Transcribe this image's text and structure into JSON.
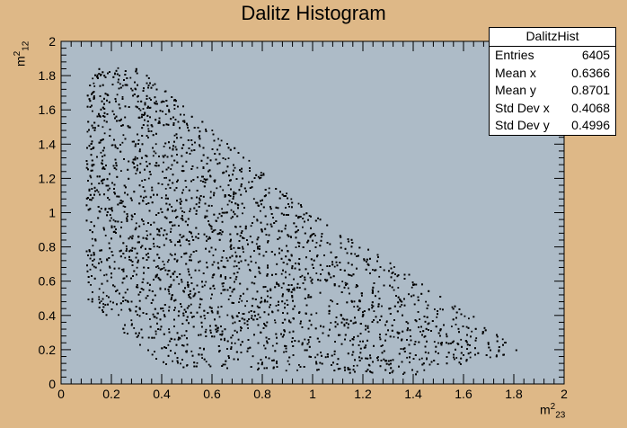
{
  "chart_data": {
    "type": "scatter",
    "title": "Dalitz Histogram",
    "xlabel": "m²₂₃",
    "ylabel": "m²₁₂",
    "xlim": [
      0,
      2
    ],
    "ylim": [
      0,
      2
    ],
    "x_ticks": [
      "0",
      "0.2",
      "0.4",
      "0.6",
      "0.8",
      "1",
      "1.2",
      "1.4",
      "1.6",
      "1.8",
      "2"
    ],
    "y_ticks": [
      "0",
      "0.2",
      "0.4",
      "0.6",
      "0.8",
      "1",
      "1.2",
      "1.4",
      "1.6",
      "1.8",
      "2"
    ],
    "colors": {
      "background": "#deb887",
      "plot_area": "#adbbc7",
      "points": "#000000"
    },
    "stats": {
      "name": "DalitzHist",
      "entries": [
        {
          "label": "Entries",
          "value": "6405"
        },
        {
          "label": "Mean x",
          "value": "0.6366"
        },
        {
          "label": "Mean y",
          "value": "0.8701"
        },
        {
          "label": "Std Dev x",
          "value": "0.4068"
        },
        {
          "label": "Std Dev y",
          "value": "0.4996"
        }
      ]
    },
    "region": {
      "description_points": [
        [
          0.1,
          1.8
        ],
        [
          0.15,
          1.85
        ],
        [
          0.3,
          1.85
        ],
        [
          1.0,
          1.0
        ],
        [
          1.85,
          0.2
        ],
        [
          1.4,
          0.05
        ],
        [
          0.4,
          0.1
        ],
        [
          0.1,
          0.5
        ]
      ]
    },
    "point_count": 6405
  }
}
